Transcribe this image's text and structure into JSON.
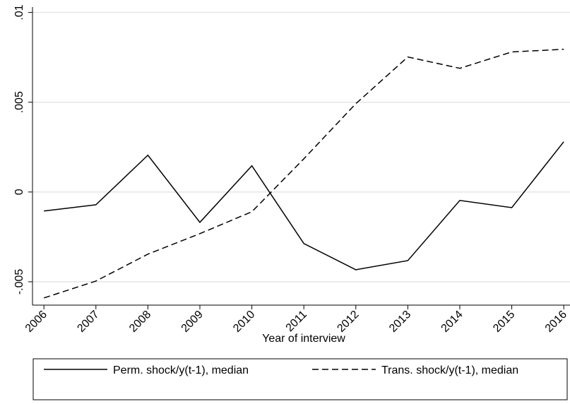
{
  "chart_data": {
    "type": "line",
    "x_label": "Year of interview",
    "x": [
      2006,
      2007,
      2008,
      2009,
      2010,
      2011,
      2012,
      2013,
      2014,
      2015,
      2016
    ],
    "series": [
      {
        "name": "Perm. shock/y(t-1), median",
        "color": "#000000",
        "style": "solid",
        "values": [
          -0.00106,
          -0.00071,
          0.00205,
          -0.00169,
          0.00146,
          -0.00287,
          -0.00433,
          -0.00382,
          -0.00047,
          -0.00087,
          0.0028
        ]
      },
      {
        "name": "Trans. shock/y(t-1), median",
        "color": "#000000",
        "style": "dashed",
        "values": [
          -0.0059,
          -0.00496,
          -0.00346,
          -0.00232,
          -0.0011,
          0.00185,
          0.00492,
          0.00752,
          0.00689,
          0.0078,
          0.00795
        ]
      }
    ],
    "xlim": [
      2005.78,
      2016.12
    ],
    "xticks": [
      2006,
      2007,
      2008,
      2009,
      2010,
      2011,
      2012,
      2013,
      2014,
      2015,
      2016
    ],
    "ylim": [
      -0.0063,
      0.0103
    ],
    "yticks": [
      {
        "value": -0.005,
        "label": "-.005"
      },
      0,
      {
        "value": 0.005,
        "label": ".005"
      },
      {
        "value": 0.01,
        "label": ".01"
      }
    ],
    "grid": true,
    "legend": "bottom"
  }
}
